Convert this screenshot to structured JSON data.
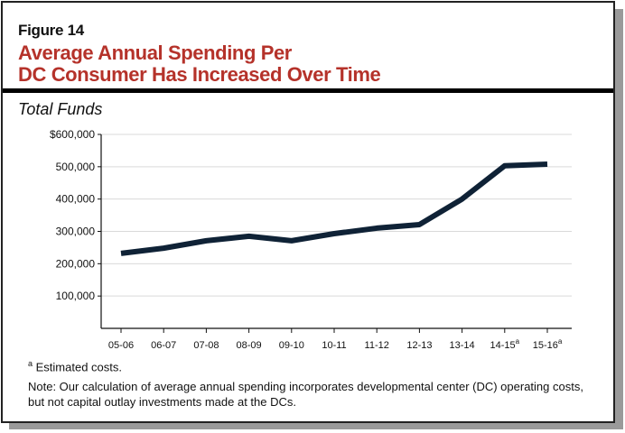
{
  "figure_label": "Figure 14",
  "title_lines": [
    "Average Annual Spending Per",
    "DC Consumer Has Increased Over Time"
  ],
  "subtitle": "Total Funds",
  "chart_data": {
    "type": "line",
    "title": "Average Annual Spending Per DC Consumer Has Increased Over Time",
    "subtitle": "Total Funds",
    "categories": [
      "05-06",
      "06-07",
      "07-08",
      "08-09",
      "09-10",
      "10-11",
      "11-12",
      "12-13",
      "13-14",
      "14-15",
      "15-16"
    ],
    "category_superscripts": [
      "",
      "",
      "",
      "",
      "",
      "",
      "",
      "",
      "",
      "a",
      "a"
    ],
    "values": [
      232000,
      248000,
      271000,
      285000,
      271000,
      293000,
      310000,
      321000,
      400000,
      503000,
      508000
    ],
    "ylim": [
      0,
      600000
    ],
    "yticks": [
      100000,
      200000,
      300000,
      400000,
      500000,
      600000
    ],
    "ytick_labels": [
      "100,000",
      "200,000",
      "300,000",
      "400,000",
      "500,000",
      "$600,000"
    ],
    "xlabel": "",
    "ylabel": "",
    "grid": true,
    "line_color": "#0f2236"
  },
  "footnote": {
    "mark": "a",
    "text": "Estimated costs."
  },
  "note": "Note: Our calculation of average annual spending incorporates developmental center (DC) operating costs, but not capital outlay investments made at the DCs.",
  "colors": {
    "title": "#b5322a",
    "line": "#0f2236",
    "grid": "#d9d9d9"
  }
}
